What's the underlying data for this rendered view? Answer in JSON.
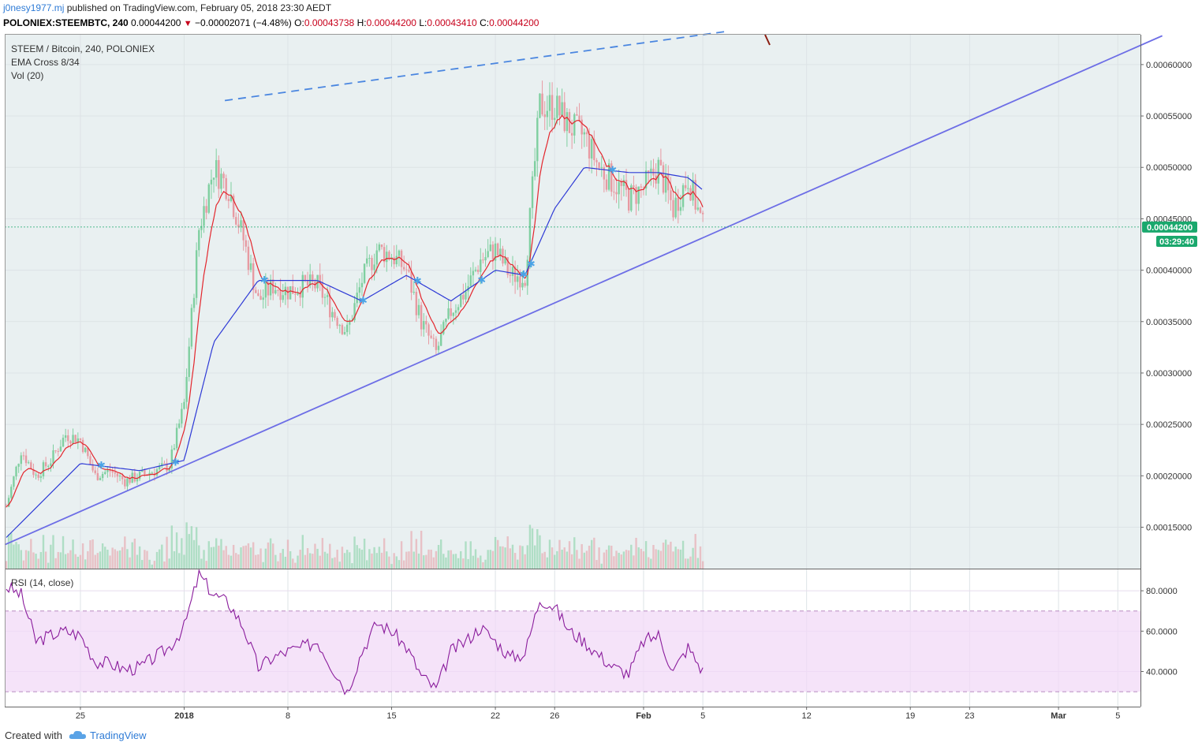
{
  "header": {
    "user": "j0nesy1977.mj",
    "published_text": "published on TradingView.com, February 05, 2018 23:30 AEDT"
  },
  "quote": {
    "symbol": "POLONIEX:STEEMBTC, 240",
    "last": "0.00044200",
    "change": "−0.00002071 (−4.48%)",
    "o_label": "O:",
    "o": "0.00043738",
    "h_label": "H:",
    "h": "0.00044200",
    "l_label": "L:",
    "l": "0.00043410",
    "c_label": "C:",
    "c": "0.00044200"
  },
  "legend": {
    "series": "STEEM / Bitcoin, 240, POLONIEX",
    "ema": "EMA Cross 8/34",
    "vol": "Vol (20)"
  },
  "rsi_label": "RSI (14, close)",
  "price_tag": {
    "value": "0.00044200",
    "countdown": "03:29:40"
  },
  "footer": {
    "created": "Created with",
    "brand": "TradingView"
  },
  "colors": {
    "up": "#7fcfa0",
    "down": "#e79aa2",
    "ema_fast": "#e3262d",
    "ema_slow": "#2e3ad6",
    "trendline": "#6d6ee6",
    "resistance": "#4a86e0",
    "tag": "#1aa86d",
    "rsi": "#8a1c9c",
    "rsi_band": "#f1d9f7"
  },
  "chart_data": [
    {
      "type": "candlestick",
      "title": "STEEM / Bitcoin, 240, POLONIEX",
      "ylim": [
        0.00011,
        0.00063
      ],
      "y_ticks": [
        "0.00015000",
        "0.00020000",
        "0.00025000",
        "0.00030000",
        "0.00035000",
        "0.00040000",
        "0.00045000",
        "0.00050000",
        "0.00055000",
        "0.00060000"
      ],
      "x_ticks": [
        "25",
        "2018",
        "8",
        "15",
        "22",
        "26",
        "Feb",
        "5",
        "12",
        "19",
        "23",
        "Mar",
        "5"
      ],
      "last_price": 0.000442,
      "price_path": [
        {
          "date": "Dec 20",
          "price": 0.00017
        },
        {
          "date": "Dec 21",
          "price": 0.000225
        },
        {
          "date": "Dec 22",
          "price": 0.0002
        },
        {
          "date": "Dec 23",
          "price": 0.000215
        },
        {
          "date": "Dec 24",
          "price": 0.00024
        },
        {
          "date": "Dec 25",
          "price": 0.000235
        },
        {
          "date": "Dec 26",
          "price": 0.0002
        },
        {
          "date": "Dec 27",
          "price": 0.000205
        },
        {
          "date": "Dec 28",
          "price": 0.000195
        },
        {
          "date": "Dec 29",
          "price": 0.0002
        },
        {
          "date": "Dec 30",
          "price": 0.000205
        },
        {
          "date": "Dec 31",
          "price": 0.00021
        },
        {
          "date": "Jan 1",
          "price": 0.00027
        },
        {
          "date": "Jan 2",
          "price": 0.00044
        },
        {
          "date": "Jan 3",
          "price": 0.0005
        },
        {
          "date": "Jan 4",
          "price": 0.00048
        },
        {
          "date": "Jan 5",
          "price": 0.00043
        },
        {
          "date": "Jan 6",
          "price": 0.00037
        },
        {
          "date": "Jan 7",
          "price": 0.000385
        },
        {
          "date": "Jan 8",
          "price": 0.00038
        },
        {
          "date": "Jan 9",
          "price": 0.000385
        },
        {
          "date": "Jan 10",
          "price": 0.000385
        },
        {
          "date": "Jan 11",
          "price": 0.00036
        },
        {
          "date": "Jan 12",
          "price": 0.00034
        },
        {
          "date": "Jan 13",
          "price": 0.00039
        },
        {
          "date": "Jan 14",
          "price": 0.00042
        },
        {
          "date": "Jan 15",
          "price": 0.000415
        },
        {
          "date": "Jan 16",
          "price": 0.0004
        },
        {
          "date": "Jan 17",
          "price": 0.00035
        },
        {
          "date": "Jan 18",
          "price": 0.00032
        },
        {
          "date": "Jan 19",
          "price": 0.00036
        },
        {
          "date": "Jan 20",
          "price": 0.00038
        },
        {
          "date": "Jan 21",
          "price": 0.00041
        },
        {
          "date": "Jan 22",
          "price": 0.00042
        },
        {
          "date": "Jan 23",
          "price": 0.000395
        },
        {
          "date": "Jan 24",
          "price": 0.000395
        },
        {
          "date": "Jan 25",
          "price": 0.00056
        },
        {
          "date": "Jan 26",
          "price": 0.00056
        },
        {
          "date": "Jan 27",
          "price": 0.00054
        },
        {
          "date": "Jan 28",
          "price": 0.00053
        },
        {
          "date": "Jan 29",
          "price": 0.0005
        },
        {
          "date": "Jan 30",
          "price": 0.000485
        },
        {
          "date": "Jan 31",
          "price": 0.00047
        },
        {
          "date": "Feb 1",
          "price": 0.00048
        },
        {
          "date": "Feb 2",
          "price": 0.0005
        },
        {
          "date": "Feb 3",
          "price": 0.00046
        },
        {
          "date": "Feb 4",
          "price": 0.00049
        },
        {
          "date": "Feb 5",
          "price": 0.000442
        }
      ],
      "ema_slow_path": [
        {
          "date": "Dec 20",
          "value": 0.00014
        },
        {
          "date": "Dec 25",
          "value": 0.000212
        },
        {
          "date": "Dec 29",
          "value": 0.000205
        },
        {
          "date": "Jan 1",
          "value": 0.000215
        },
        {
          "date": "Jan 3",
          "value": 0.00033
        },
        {
          "date": "Jan 6",
          "value": 0.00039
        },
        {
          "date": "Jan 10",
          "value": 0.00039
        },
        {
          "date": "Jan 13",
          "value": 0.00037
        },
        {
          "date": "Jan 16",
          "value": 0.000395
        },
        {
          "date": "Jan 19",
          "value": 0.00037
        },
        {
          "date": "Jan 22",
          "value": 0.0004
        },
        {
          "date": "Jan 24",
          "value": 0.000395
        },
        {
          "date": "Jan 26",
          "value": 0.00046
        },
        {
          "date": "Jan 28",
          "value": 0.0005
        },
        {
          "date": "Jan 31",
          "value": 0.000495
        },
        {
          "date": "Feb 2",
          "value": 0.000495
        },
        {
          "date": "Feb 4",
          "value": 0.00049
        },
        {
          "date": "Feb 5",
          "value": 0.000478
        }
      ],
      "trendlines": [
        {
          "style": "solid",
          "from": {
            "date": "Dec 20",
            "price": 0.000133
          },
          "to": {
            "date": "Mar 8",
            "price": 0.000628
          }
        },
        {
          "style": "dashed",
          "from": {
            "date": "Jan 3",
            "price": 0.000565
          },
          "to": {
            "date": "Feb 7",
            "price": 0.000632
          }
        }
      ],
      "series": [
        {
          "name": "EMA Cross 8/34"
        },
        {
          "name": "Vol (20)"
        }
      ]
    },
    {
      "type": "line",
      "title": "RSI (14, close)",
      "ylim": [
        22,
        92
      ],
      "y_ticks": [
        "40.0000",
        "60.0000",
        "80.0000"
      ],
      "bands": [
        30,
        70
      ],
      "points": [
        {
          "date": "Dec 20",
          "value": 82
        },
        {
          "date": "Dec 21",
          "value": 78
        },
        {
          "date": "Dec 22",
          "value": 55
        },
        {
          "date": "Dec 23",
          "value": 58
        },
        {
          "date": "Dec 24",
          "value": 60
        },
        {
          "date": "Dec 25",
          "value": 58
        },
        {
          "date": "Dec 26",
          "value": 45
        },
        {
          "date": "Dec 27",
          "value": 44
        },
        {
          "date": "Dec 28",
          "value": 41
        },
        {
          "date": "Dec 29",
          "value": 42
        },
        {
          "date": "Dec 30",
          "value": 47
        },
        {
          "date": "Dec 31",
          "value": 52
        },
        {
          "date": "Jan 1",
          "value": 62
        },
        {
          "date": "Jan 2",
          "value": 88
        },
        {
          "date": "Jan 3",
          "value": 78
        },
        {
          "date": "Jan 4",
          "value": 74
        },
        {
          "date": "Jan 5",
          "value": 62
        },
        {
          "date": "Jan 6",
          "value": 42
        },
        {
          "date": "Jan 7",
          "value": 47
        },
        {
          "date": "Jan 8",
          "value": 50
        },
        {
          "date": "Jan 9",
          "value": 52
        },
        {
          "date": "Jan 10",
          "value": 55
        },
        {
          "date": "Jan 11",
          "value": 42
        },
        {
          "date": "Jan 12",
          "value": 30
        },
        {
          "date": "Jan 13",
          "value": 50
        },
        {
          "date": "Jan 14",
          "value": 64
        },
        {
          "date": "Jan 15",
          "value": 60
        },
        {
          "date": "Jan 16",
          "value": 52
        },
        {
          "date": "Jan 17",
          "value": 38
        },
        {
          "date": "Jan 18",
          "value": 31
        },
        {
          "date": "Jan 19",
          "value": 50
        },
        {
          "date": "Jan 20",
          "value": 55
        },
        {
          "date": "Jan 21",
          "value": 62
        },
        {
          "date": "Jan 22",
          "value": 55
        },
        {
          "date": "Jan 23",
          "value": 47
        },
        {
          "date": "Jan 24",
          "value": 49
        },
        {
          "date": "Jan 25",
          "value": 76
        },
        {
          "date": "Jan 26",
          "value": 72
        },
        {
          "date": "Jan 27",
          "value": 60
        },
        {
          "date": "Jan 28",
          "value": 55
        },
        {
          "date": "Jan 29",
          "value": 48
        },
        {
          "date": "Jan 30",
          "value": 42
        },
        {
          "date": "Jan 31",
          "value": 39
        },
        {
          "date": "Feb 1",
          "value": 55
        },
        {
          "date": "Feb 2",
          "value": 58
        },
        {
          "date": "Feb 3",
          "value": 40
        },
        {
          "date": "Feb 4",
          "value": 52
        },
        {
          "date": "Feb 5",
          "value": 40
        }
      ]
    }
  ]
}
